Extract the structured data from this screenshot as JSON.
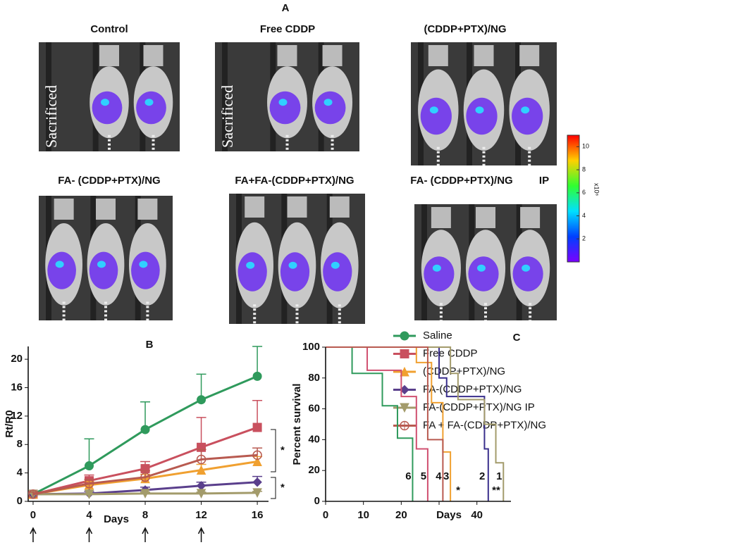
{
  "panel_a": {
    "label": "A",
    "titles": [
      "Control",
      "Free CDDP",
      "(CDDP+PTX)/NG",
      "FA- (CDDP+PTX)/NG",
      "FA+FA-(CDDP+PTX)/NG",
      "FA- (CDDP+PTX)/NG"
    ],
    "ip_label": "IP",
    "sacrificed": [
      "Sacrificed",
      "Sacrificed"
    ],
    "colorbar": {
      "unit": "x10⁶",
      "lim": [
        0,
        11
      ],
      "ticks": [
        2,
        4,
        6,
        8,
        10
      ]
    }
  },
  "chart_data": [
    {
      "type": "line",
      "title": "B",
      "xlabel": "Days",
      "ylabel": "Rt/R0",
      "x": [
        0,
        4,
        8,
        12,
        16
      ],
      "xlim": [
        -0.35,
        16.8
      ],
      "xticks": [
        0,
        4,
        8,
        12,
        16
      ],
      "ylim": [
        0,
        21.8
      ],
      "yticks": [
        0,
        4,
        8,
        12,
        16,
        20
      ],
      "significance": [
        "*",
        "*"
      ],
      "series": [
        {
          "name": "Saline",
          "color": "#2f9a5c",
          "marker": "circle",
          "values": [
            1,
            5,
            10.1,
            14.3,
            17.6
          ],
          "errors": [
            0,
            3.8,
            3.9,
            3.6,
            4.2
          ]
        },
        {
          "name": "Free CDDP",
          "color": "#c9505e",
          "marker": "square",
          "values": [
            1,
            2.9,
            4.6,
            7.6,
            10.4
          ],
          "errors": [
            0.2,
            0.8,
            1,
            4.2,
            3.8
          ]
        },
        {
          "name": "(CDDP+PTX)/NG",
          "color": "#f0a030",
          "marker": "triangle",
          "values": [
            1,
            2.3,
            3.2,
            4.4,
            5.6
          ],
          "errors": [
            0.2,
            0.5,
            0.6,
            0.8,
            0.7
          ]
        },
        {
          "name": "FA-(CDDP+PTX)/NG",
          "color": "#5a3f8c",
          "marker": "diamond",
          "values": [
            1,
            1.1,
            1.6,
            2.2,
            2.7
          ],
          "errors": [
            0.2,
            0.3,
            0.4,
            0.5,
            0.8
          ]
        },
        {
          "name": "FA-(CDDP+PTX)/NG IP",
          "color": "#a39b6b",
          "marker": "triangle-down",
          "values": [
            1,
            1,
            1.1,
            1.1,
            1.2
          ],
          "errors": [
            0.1,
            0.1,
            0.2,
            0.2,
            0.2
          ]
        },
        {
          "name": "FA + FA-(CDDP+PTX)/NG",
          "color": "#b85a50",
          "marker": "circle-cross",
          "values": [
            1,
            2.5,
            3.4,
            5.9,
            6.5
          ],
          "errors": [
            0.3,
            0.6,
            0.9,
            1.4,
            1
          ]
        }
      ]
    },
    {
      "type": "survival",
      "title": "C",
      "xlabel": "Days",
      "ylabel": "Percent survival",
      "xlim": [
        0,
        49
      ],
      "xticks": [
        0,
        10,
        20,
        30,
        40
      ],
      "ylim": [
        0,
        100
      ],
      "yticks": [
        0,
        20,
        40,
        60,
        80,
        100
      ],
      "group_labels": [
        "6",
        "5",
        "4",
        "3",
        "2",
        "1"
      ],
      "significance": [
        "*",
        "**"
      ],
      "series": [
        {
          "color": "#2f9a5c",
          "x": [
            0,
            7,
            15,
            19,
            23
          ],
          "values": [
            100,
            83,
            62,
            41,
            0
          ]
        },
        {
          "color": "#d05070",
          "x": [
            0,
            11,
            20,
            24,
            27
          ],
          "values": [
            100,
            85,
            68,
            34,
            0
          ]
        },
        {
          "color": "#f0a030",
          "x": [
            0,
            24,
            28,
            31,
            33
          ],
          "values": [
            100,
            90,
            64,
            32,
            0
          ]
        },
        {
          "color": "#3a2f8c",
          "x": [
            0,
            30,
            32,
            42,
            43
          ],
          "values": [
            100,
            80,
            68,
            34,
            0
          ]
        },
        {
          "color": "#a39b6b",
          "x": [
            0,
            33,
            35,
            42,
            45,
            47
          ],
          "values": [
            100,
            83,
            66,
            50,
            25,
            0
          ]
        },
        {
          "color": "#b85a50",
          "x": [
            0,
            27,
            31
          ],
          "values": [
            100,
            40,
            0
          ]
        }
      ]
    }
  ]
}
